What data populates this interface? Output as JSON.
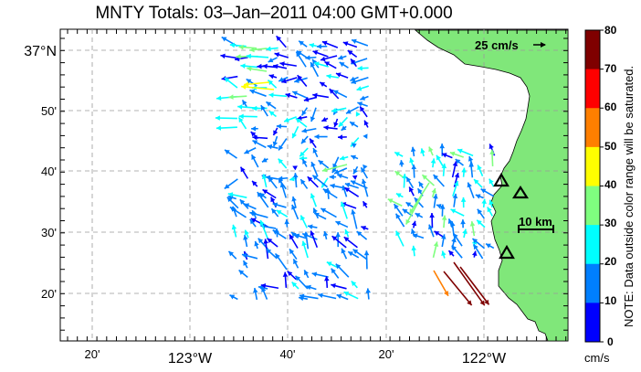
{
  "title": "MNTY Totals: 03–Jan–2011 04:00 GMT+0.000",
  "lat_labels": [
    "37°N",
    "50'",
    "40'",
    "30'",
    "20'"
  ],
  "lon_labels": [
    "20'",
    "123°W",
    "40'",
    "20'",
    "122°W"
  ],
  "scale_arrow_label": "25 cm/s",
  "scale_bar_label": "10 km",
  "colorbar": {
    "ticks": [
      "80",
      "70",
      "60",
      "50",
      "40",
      "30",
      "20",
      "10",
      "0"
    ],
    "colors": [
      "#7f0000",
      "#ff0000",
      "#ff7f00",
      "#ffff00",
      "#7fff7f",
      "#00ffff",
      "#007fff",
      "#0000ff"
    ],
    "units": "cm/s",
    "note": "NOTE: Data outside color range will be saturated."
  },
  "colors": {
    "land": "#80e77a",
    "grid": "#9a9a9a"
  },
  "icons": {
    "sites": "triangle-marker-icon"
  }
}
